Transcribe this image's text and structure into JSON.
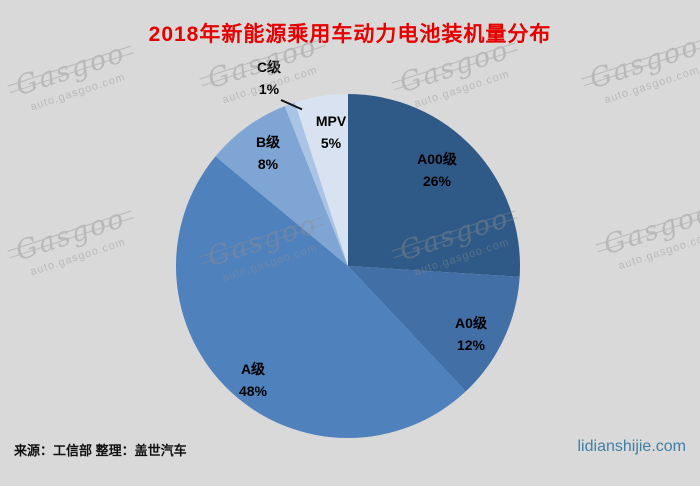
{
  "page": {
    "title": "2018年新能源乘用车动力电池装机量分布",
    "source_note": "来源：工信部  整理：盖世汽车",
    "site_credit": "lidianshijie.com"
  },
  "watermark": {
    "brand": "Gasgoo",
    "url": "auto.gasgoo.com"
  },
  "colors": {
    "background": "#d9d9d9",
    "title": "#e60000",
    "site_credit": "#4180a6",
    "label_text": "#000000"
  },
  "chart_data": {
    "type": "pie",
    "title": "2018年新能源乘用车动力电池装机量分布",
    "unit": "%",
    "start_angle_deg": 0,
    "direction": "clockwise",
    "legend_position": "none",
    "slices": [
      {
        "label": "A00级",
        "value": 26,
        "pct": "26%",
        "color": "#2f5a88"
      },
      {
        "label": "A0级",
        "value": 12,
        "pct": "12%",
        "color": "#416fa6"
      },
      {
        "label": "A级",
        "value": 48,
        "pct": "48%",
        "color": "#4f81bd"
      },
      {
        "label": "B级",
        "value": 8,
        "pct": "8%",
        "color": "#7fa5d5"
      },
      {
        "label": "C级",
        "value": 1,
        "pct": "1%",
        "color": "#a9c4e4"
      },
      {
        "label": "MPV",
        "value": 5,
        "pct": "5%",
        "color": "#d9e2f0"
      }
    ]
  }
}
